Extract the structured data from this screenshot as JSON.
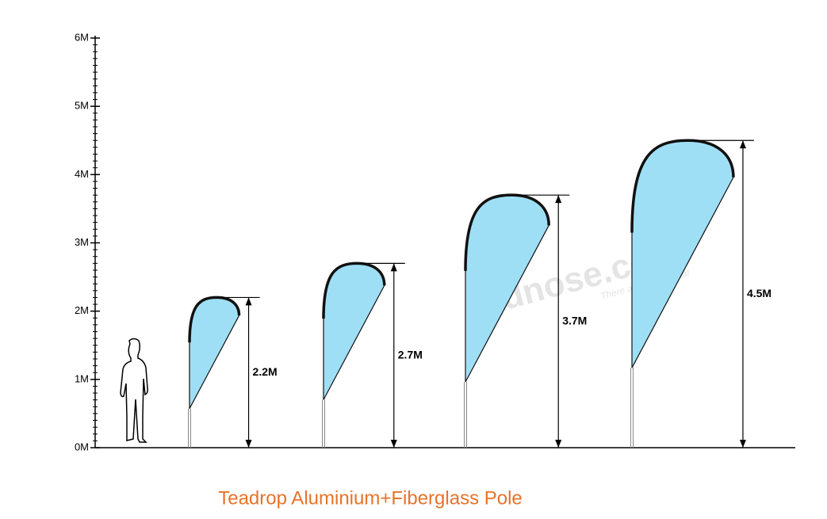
{
  "scale": {
    "ylim": [
      0,
      6
    ],
    "ticks": [
      {
        "value": 0,
        "label": "0M"
      },
      {
        "value": 1,
        "label": "1M"
      },
      {
        "value": 2,
        "label": "2M"
      },
      {
        "value": 3,
        "label": "3M"
      },
      {
        "value": 4,
        "label": "4M"
      },
      {
        "value": 5,
        "label": "5M"
      },
      {
        "value": 6,
        "label": "6M"
      }
    ]
  },
  "flags": [
    {
      "height": 2.2,
      "label": "2.2M"
    },
    {
      "height": 2.7,
      "label": "2.7M"
    },
    {
      "height": 3.7,
      "label": "3.7M"
    },
    {
      "height": 4.5,
      "label": "4.5M"
    }
  ],
  "watermark": {
    "brand": "adnose.com",
    "slogan": "There are preferential"
  },
  "caption": "Teadrop Aluminium+Fiberglass Pole"
}
